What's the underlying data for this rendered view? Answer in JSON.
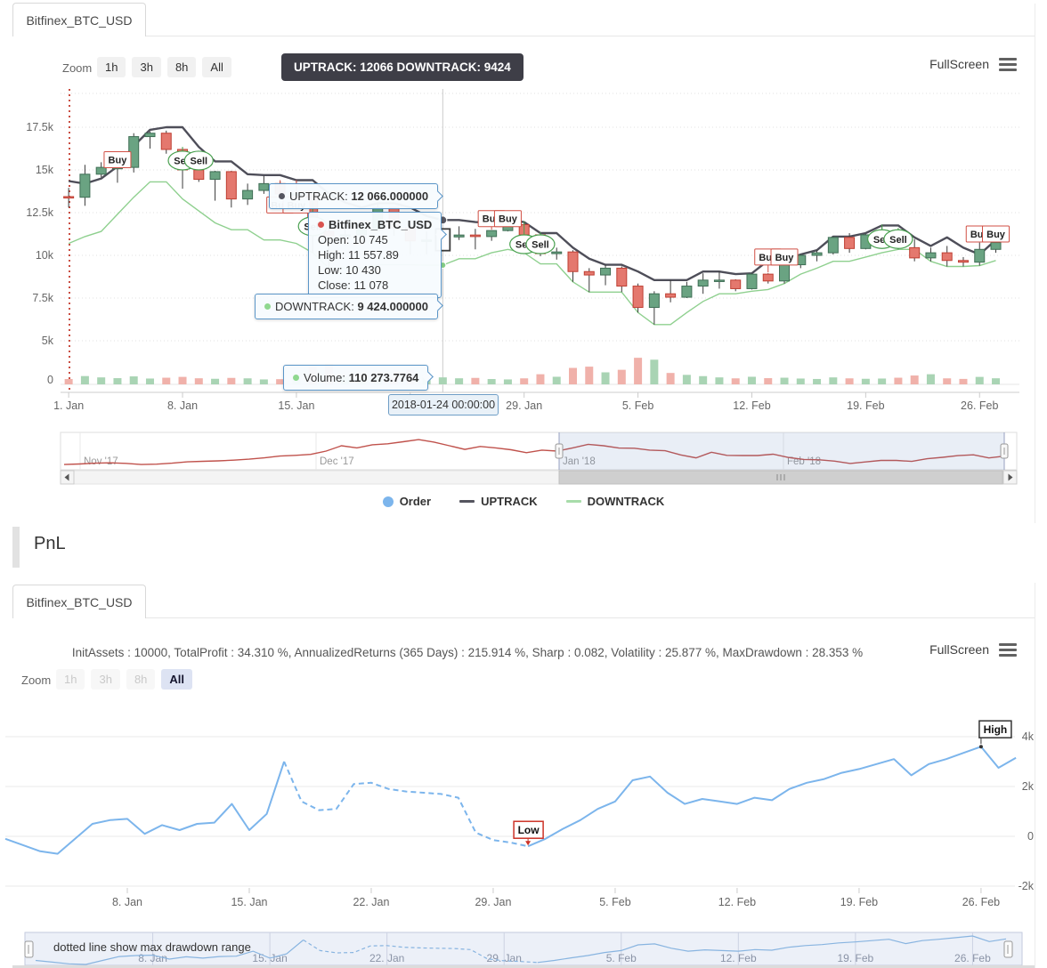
{
  "top": {
    "tab": "Bitfinex_BTC_USD",
    "zoom_label": "Zoom",
    "zoom_buttons": [
      "1h",
      "3h",
      "8h",
      "All"
    ],
    "header_tooltip": "UPTRACK: 12066 DOWNTRACK: 9424",
    "fullscreen_label": "FullScreen",
    "legend": [
      {
        "label": "Order",
        "color": "#7cb5ec"
      },
      {
        "label": "UPTRACK",
        "color": "#55555f"
      },
      {
        "label": "DOWNTRACK",
        "color": "#a8dcaa"
      }
    ],
    "tooltips": {
      "uptrack_label": "UPTRACK:",
      "uptrack_value": "12 066.000000",
      "series_title": "Bitfinex_BTC_USD",
      "open": "Open: 10 745",
      "high": "High: 11 557.89",
      "low": "Low: 10 430",
      "close": "Close: 11 078",
      "downtrack_label": "DOWNTRACK:",
      "downtrack_value": "9 424.000000",
      "volume_label": "Volume:",
      "volume_value": "110 273.7764",
      "date": "2018-01-24 00:00:00"
    },
    "chart_data": {
      "type": "candlestick",
      "symbol": "Bitfinex_BTC_USD",
      "interval": "1d",
      "start_date": "2018-01-01",
      "y_axis": [
        {
          "label": "17.5k",
          "value": 17500
        },
        {
          "label": "15k",
          "value": 15000
        },
        {
          "label": "12.5k",
          "value": 12500
        },
        {
          "label": "10k",
          "value": 10000
        },
        {
          "label": "7.5k",
          "value": 7500
        },
        {
          "label": "5k",
          "value": 5000
        }
      ],
      "volume_axis_label": "0",
      "x_labels": [
        {
          "index": 0,
          "label": "1. Jan"
        },
        {
          "index": 7,
          "label": "8. Jan"
        },
        {
          "index": 14,
          "label": "15. Jan"
        },
        {
          "index": 21,
          "label": "22. Jan"
        },
        {
          "index": 28,
          "label": "29. Jan"
        },
        {
          "index": 35,
          "label": "5. Feb"
        },
        {
          "index": 42,
          "label": "12. Feb"
        },
        {
          "index": 49,
          "label": "19. Feb"
        },
        {
          "index": 56,
          "label": "26. Feb"
        }
      ],
      "candles": [
        [
          13440,
          13950,
          12800,
          13400
        ],
        [
          13400,
          15300,
          12900,
          14750
        ],
        [
          14750,
          15450,
          14580,
          15150
        ],
        [
          15150,
          15850,
          14250,
          15150
        ],
        [
          15150,
          17150,
          14850,
          16950
        ],
        [
          16950,
          17250,
          16250,
          17150
        ],
        [
          17150,
          17300,
          15950,
          16200
        ],
        [
          16200,
          16300,
          13900,
          15000
        ],
        [
          15000,
          15400,
          14300,
          14450
        ],
        [
          14450,
          14950,
          13200,
          14900
        ],
        [
          14900,
          14950,
          12800,
          13300
        ],
        [
          13300,
          14200,
          12950,
          13800
        ],
        [
          13800,
          14650,
          13600,
          14200
        ],
        [
          14200,
          14350,
          13200,
          13600
        ],
        [
          13600,
          14350,
          13350,
          13600
        ],
        [
          13600,
          13600,
          10150,
          11400
        ],
        [
          11400,
          11800,
          9200,
          11150
        ],
        [
          11150,
          12050,
          10600,
          11200
        ],
        [
          11200,
          11950,
          10900,
          11500
        ],
        [
          11500,
          13050,
          11400,
          12800
        ],
        [
          12800,
          12800,
          11150,
          11600
        ],
        [
          11600,
          11950,
          10050,
          10850
        ],
        [
          10850,
          11400,
          10050,
          10900
        ],
        [
          10745,
          11557.89,
          10430,
          11078
        ],
        [
          11078,
          11700,
          10900,
          11190
        ],
        [
          11190,
          11550,
          10350,
          11100
        ],
        [
          11100,
          11450,
          10850,
          11450
        ],
        [
          11450,
          12050,
          11400,
          11800
        ],
        [
          11800,
          11950,
          11100,
          11200
        ],
        [
          11200,
          11300,
          9950,
          10100
        ],
        [
          10100,
          10450,
          9750,
          10200
        ],
        [
          10200,
          10300,
          8450,
          9050
        ],
        [
          9050,
          9250,
          7850,
          8850
        ],
        [
          8850,
          9450,
          8250,
          9250
        ],
        [
          9250,
          9350,
          7850,
          8200
        ],
        [
          8200,
          8350,
          6650,
          6950
        ],
        [
          6950,
          7900,
          5950,
          7750
        ],
        [
          7750,
          8550,
          7250,
          7550
        ],
        [
          7550,
          8450,
          7500,
          8200
        ],
        [
          8200,
          8950,
          7750,
          8550
        ],
        [
          8550,
          9050,
          8050,
          8550
        ],
        [
          8550,
          8600,
          7900,
          8050
        ],
        [
          8050,
          8950,
          8000,
          8900
        ],
        [
          8900,
          8950,
          8350,
          8500
        ],
        [
          8500,
          9500,
          8350,
          9450
        ],
        [
          9450,
          10050,
          9250,
          10000
        ],
        [
          10000,
          10300,
          9650,
          10150
        ],
        [
          10150,
          11100,
          10050,
          11050
        ],
        [
          11050,
          11300,
          10150,
          10400
        ],
        [
          10400,
          11250,
          10350,
          11200
        ],
        [
          11200,
          11750,
          11050,
          11450
        ],
        [
          11450,
          11550,
          10350,
          10450
        ],
        [
          10450,
          10950,
          9650,
          9850
        ],
        [
          9850,
          10450,
          9650,
          10150
        ],
        [
          10150,
          10550,
          9350,
          9700
        ],
        [
          9700,
          9900,
          9350,
          9600
        ],
        [
          9600,
          10750,
          9400,
          10350
        ],
        [
          10350,
          10900,
          10150,
          10750
        ]
      ],
      "uptrack": [
        14350,
        14200,
        14500,
        15200,
        16400,
        17350,
        17500,
        17500,
        16350,
        15500,
        15500,
        14750,
        14700,
        14700,
        14400,
        14400,
        13600,
        13100,
        12800,
        13050,
        13050,
        12800,
        12300,
        12066,
        12066,
        11950,
        11900,
        12050,
        11950,
        11300,
        11300,
        10450,
        9800,
        9450,
        9450,
        9050,
        8550,
        8550,
        8550,
        9050,
        9050,
        8900,
        8950,
        9700,
        9700,
        10050,
        10300,
        11100,
        11100,
        11300,
        11750,
        11750,
        11050,
        10550,
        11050,
        10450,
        10050,
        10900
      ],
      "downtrack": [
        10700,
        11100,
        11400,
        12400,
        13400,
        14300,
        14300,
        13300,
        12600,
        11900,
        11500,
        11500,
        10900,
        10900,
        10700,
        10150,
        9250,
        9250,
        9250,
        9450,
        9450,
        9450,
        9424,
        9424,
        9800,
        9800,
        10150,
        10350,
        10150,
        9500,
        9500,
        8450,
        7850,
        7850,
        7850,
        6650,
        5950,
        5950,
        6650,
        7300,
        7750,
        7750,
        7900,
        8000,
        8350,
        8900,
        9250,
        9650,
        9650,
        9900,
        10150,
        10350,
        10350,
        9650,
        9350,
        9350,
        9400,
        9700
      ],
      "volume": [
        84000,
        131000,
        110000,
        98000,
        126000,
        92000,
        105000,
        118000,
        96000,
        88000,
        102000,
        95000,
        78000,
        82000,
        74000,
        290000,
        310000,
        125000,
        98000,
        112000,
        105000,
        230000,
        140000,
        110273.7764,
        96000,
        102000,
        84000,
        78000,
        95000,
        160000,
        120000,
        260000,
        280000,
        190000,
        230000,
        420000,
        390000,
        180000,
        150000,
        130000,
        110000,
        95000,
        120000,
        98000,
        105000,
        92000,
        85000,
        110000,
        95000,
        88000,
        92000,
        105000,
        140000,
        160000,
        95000,
        86000,
        118000,
        96000
      ],
      "buy_label": "Buy",
      "sell_label": "Sell",
      "markers": [
        {
          "type": "buy",
          "index": 3,
          "price": 15600
        },
        {
          "type": "sell",
          "index": 7,
          "price": 15550
        },
        {
          "type": "sell",
          "index": 8,
          "price": 15550
        },
        {
          "type": "buy",
          "index": 13,
          "price": 12950
        },
        {
          "type": "buy",
          "index": 14,
          "price": 12950
        },
        {
          "type": "sell",
          "index": 15,
          "price": 11700
        },
        {
          "type": "buy",
          "index": 26,
          "price": 12150
        },
        {
          "type": "buy",
          "index": 27,
          "price": 12150
        },
        {
          "type": "sell",
          "index": 28,
          "price": 10650
        },
        {
          "type": "sell",
          "index": 29,
          "price": 10650
        },
        {
          "type": "buy",
          "index": 43,
          "price": 9900
        },
        {
          "type": "buy",
          "index": 44,
          "price": 9900
        },
        {
          "type": "sell",
          "index": 50,
          "price": 10950
        },
        {
          "type": "sell",
          "index": 51,
          "price": 10950
        },
        {
          "type": "buy",
          "index": 56,
          "price": 11250
        },
        {
          "type": "buy",
          "index": 57,
          "price": 11250
        }
      ],
      "crosshair": {
        "index": 23,
        "date": "2018-01-24 00:00:00",
        "uptrack": 12066,
        "downtrack": 9424,
        "volume": 110273.7764
      },
      "navigator": {
        "months": [
          "Nov '17",
          "Dec '17",
          "Jan '18",
          "Feb '18"
        ],
        "values": [
          6400,
          6700,
          7100,
          7300,
          7000,
          6400,
          6600,
          7100,
          7800,
          8100,
          8300,
          8700,
          9200,
          9900,
          10800,
          11200,
          11700,
          13400,
          16200,
          15100,
          16700,
          17200,
          18300,
          19400,
          18100,
          16200,
          14300,
          15800,
          15100,
          14100,
          12600,
          13900,
          13400,
          15100,
          16950,
          16200,
          15000,
          14900,
          13900,
          13600,
          11400,
          9900,
          12800,
          11200,
          11078,
          11100,
          11800,
          10100,
          9050,
          8850,
          8200,
          6950,
          7750,
          8550,
          8550,
          8050,
          9450,
          10150,
          11050,
          11450,
          9850,
          10750
        ]
      }
    }
  },
  "pnl_section": {
    "title": "PnL"
  },
  "bottom": {
    "tab": "Bitfinex_BTC_USD",
    "stats": "InitAssets : 10000, TotalProfit : 34.310 %, AnnualizedReturns (365 Days) : 215.914 %, Sharp : 0.082, Volatility : 25.877 %, MaxDrawdown : 28.353 %",
    "fullscreen_label": "FullScreen",
    "zoom_label": "Zoom",
    "zoom_buttons": [
      {
        "label": "1h",
        "state": "disabled"
      },
      {
        "label": "3h",
        "state": "disabled"
      },
      {
        "label": "8h",
        "state": "disabled"
      },
      {
        "label": "All",
        "state": "active"
      }
    ],
    "chart_data": {
      "type": "line",
      "series_name": "PnL",
      "start_date": "2018-01-01",
      "interval": "1d",
      "line_color": "#7cb5ec",
      "values": [
        -100,
        -350,
        -600,
        -700,
        -100,
        500,
        650,
        700,
        100,
        450,
        250,
        500,
        550,
        1300,
        250,
        900,
        3000,
        1400,
        1050,
        1100,
        2100,
        2150,
        1900,
        1800,
        1750,
        1700,
        1550,
        150,
        -150,
        -250,
        -400,
        -100,
        300,
        650,
        1100,
        1400,
        2250,
        2400,
        1750,
        1300,
        1500,
        1400,
        1300,
        1550,
        1450,
        1900,
        2150,
        2300,
        2550,
        2700,
        2900,
        3100,
        2450,
        2900,
        3100,
        3350,
        3600,
        2750,
        3150
      ],
      "dashed_range": [
        16,
        30
      ],
      "dashed_meaning": "max drawdown range",
      "high_label": "High",
      "low_label": "Low",
      "high_index": 56,
      "low_index": 30,
      "y_axis": [
        {
          "label": "4k",
          "value": 4000
        },
        {
          "label": "2k",
          "value": 2000
        },
        {
          "label": "0",
          "value": 0
        },
        {
          "label": "-2k",
          "value": -2000
        }
      ],
      "x_labels": [
        {
          "index": 7,
          "label": "8. Jan"
        },
        {
          "index": 14,
          "label": "15. Jan"
        },
        {
          "index": 21,
          "label": "22. Jan"
        },
        {
          "index": 28,
          "label": "29. Jan"
        },
        {
          "index": 35,
          "label": "5. Feb"
        },
        {
          "index": 42,
          "label": "12. Feb"
        },
        {
          "index": 49,
          "label": "19. Feb"
        },
        {
          "index": 56,
          "label": "26. Feb"
        }
      ],
      "navigator_note": "dotted line show max drawdown range"
    }
  }
}
